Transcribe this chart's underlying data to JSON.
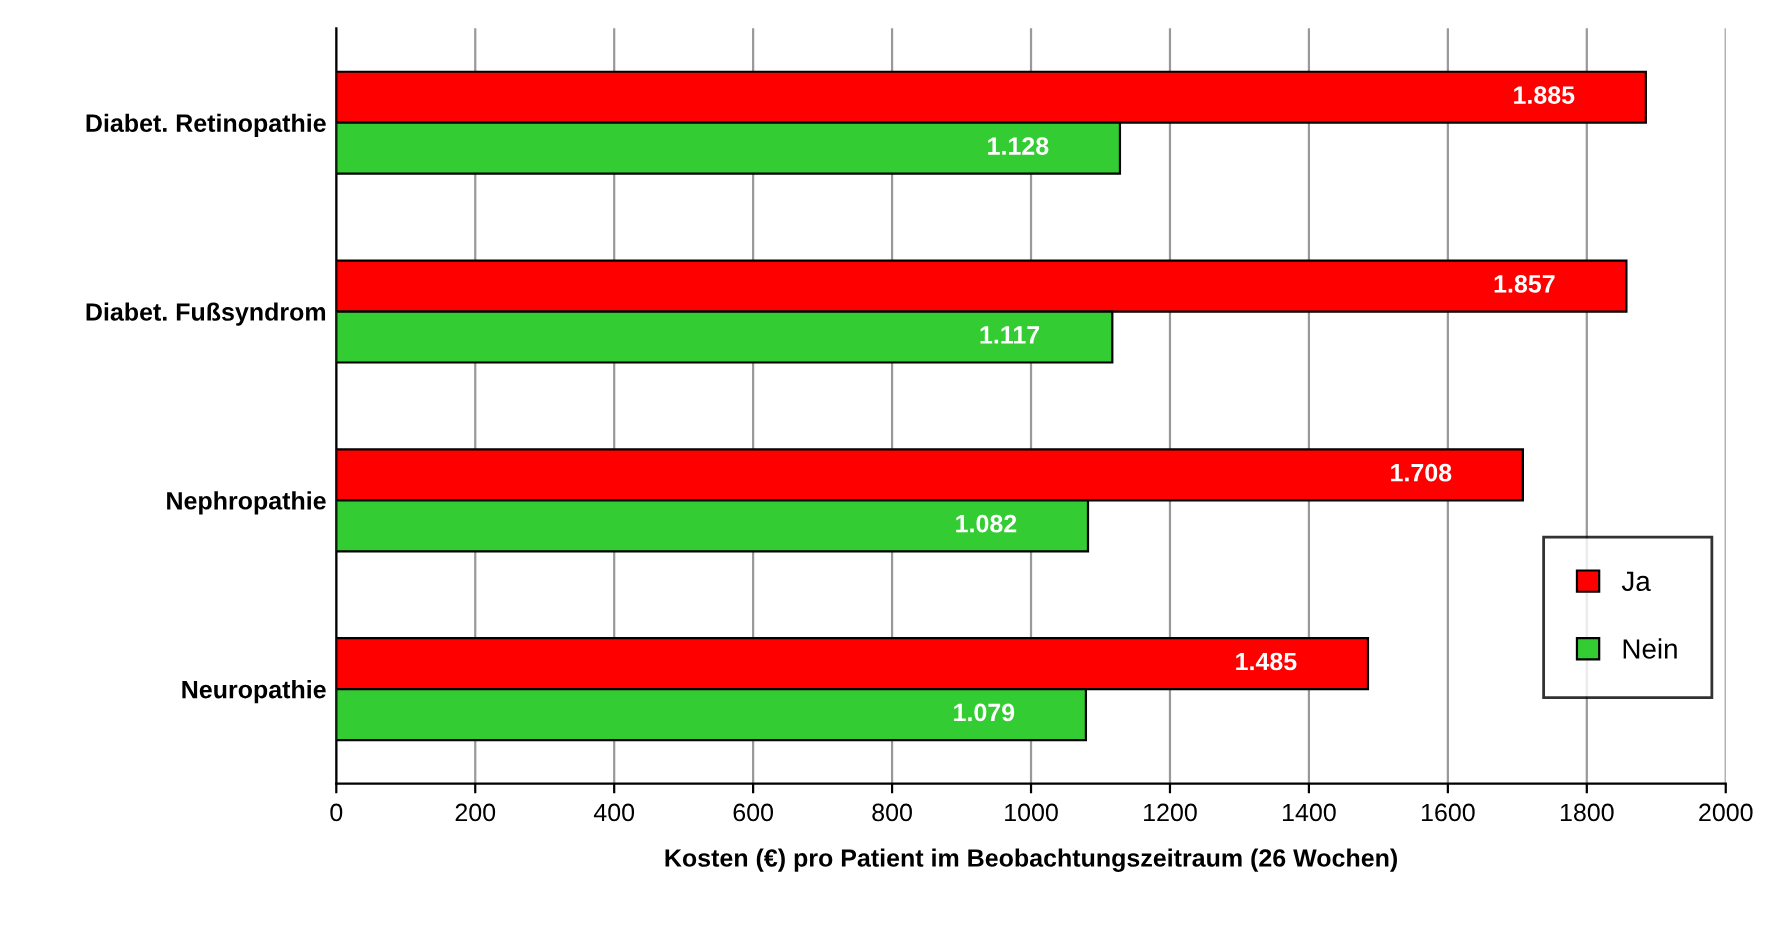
{
  "chart_data": {
    "type": "bar",
    "orientation": "horizontal",
    "categories": [
      "Diabet. Retinopathie",
      "Diabet. Fußsyndrom",
      "Nephropathie",
      "Neuropathie"
    ],
    "series": [
      {
        "name": "Ja",
        "color": "#ff0000",
        "values": [
          1885,
          1857,
          1708,
          1485
        ],
        "value_labels": [
          "1.885",
          "1.857",
          "1.708",
          "1.485"
        ]
      },
      {
        "name": "Nein",
        "color": "#33cc33",
        "values": [
          1128,
          1117,
          1082,
          1079
        ],
        "value_labels": [
          "1.128",
          "1.117",
          "1.082",
          "1.079"
        ]
      }
    ],
    "xlabel": "Kosten (€) pro Patient im Beobachtungszeitraum (26 Wochen)",
    "xlim": [
      0,
      2000
    ],
    "xticks": [
      0,
      200,
      400,
      600,
      800,
      1000,
      1200,
      1400,
      1600,
      1800,
      2000
    ],
    "grid": "x",
    "legend": "right"
  }
}
